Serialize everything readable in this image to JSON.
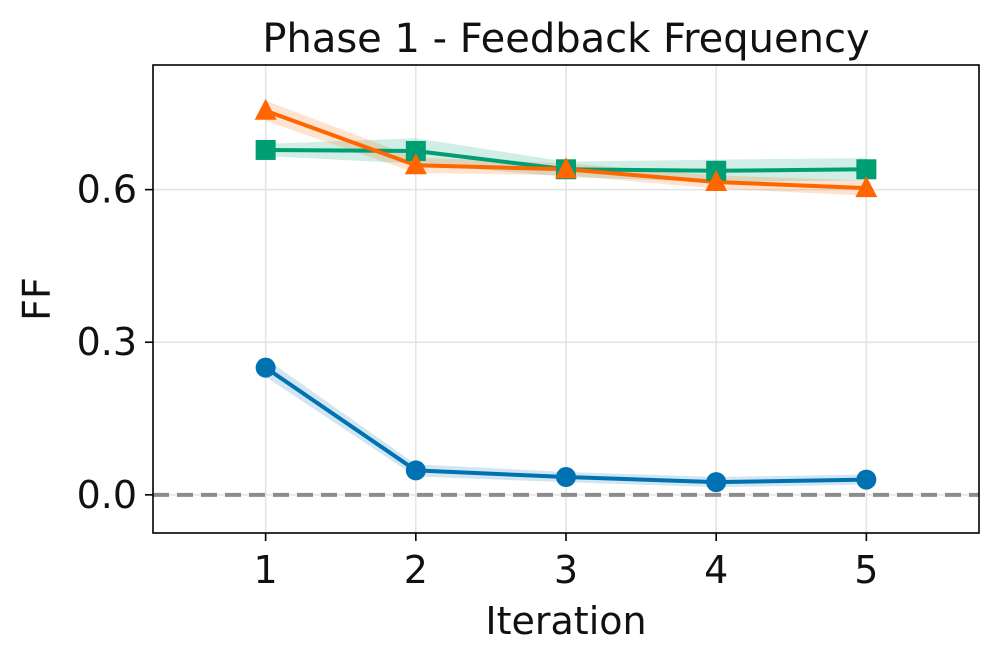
{
  "chart_data": {
    "type": "line",
    "title": "Phase 1 - Feedback Frequency",
    "xlabel": "Iteration",
    "ylabel": "FF",
    "x": [
      1,
      2,
      3,
      4,
      5
    ],
    "xlim": [
      0.25,
      5.75
    ],
    "ylim": [
      -0.075,
      0.845
    ],
    "xticks": [
      1,
      2,
      3,
      4,
      5
    ],
    "yticks": [
      0.0,
      0.3,
      0.6
    ],
    "ytick_labels": [
      "0.0",
      "0.3",
      "0.6"
    ],
    "grid": true,
    "reference_line": {
      "y": 0.0,
      "style": "dashed",
      "color": "#8c8c8c"
    },
    "series": [
      {
        "marker": "circle",
        "color": "#0072b2",
        "values": [
          0.25,
          0.048,
          0.035,
          0.025,
          0.03
        ],
        "band": [
          0.018,
          0.012,
          0.01,
          0.01,
          0.01
        ]
      },
      {
        "marker": "square",
        "color": "#009e73",
        "values": [
          0.678,
          0.676,
          0.64,
          0.637,
          0.64
        ],
        "band": [
          0.012,
          0.025,
          0.015,
          0.022,
          0.022
        ]
      },
      {
        "marker": "triangle",
        "color": "#ff6600",
        "values": [
          0.755,
          0.648,
          0.64,
          0.615,
          0.603
        ],
        "band": [
          0.02,
          0.015,
          0.012,
          0.013,
          0.015
        ]
      }
    ]
  }
}
